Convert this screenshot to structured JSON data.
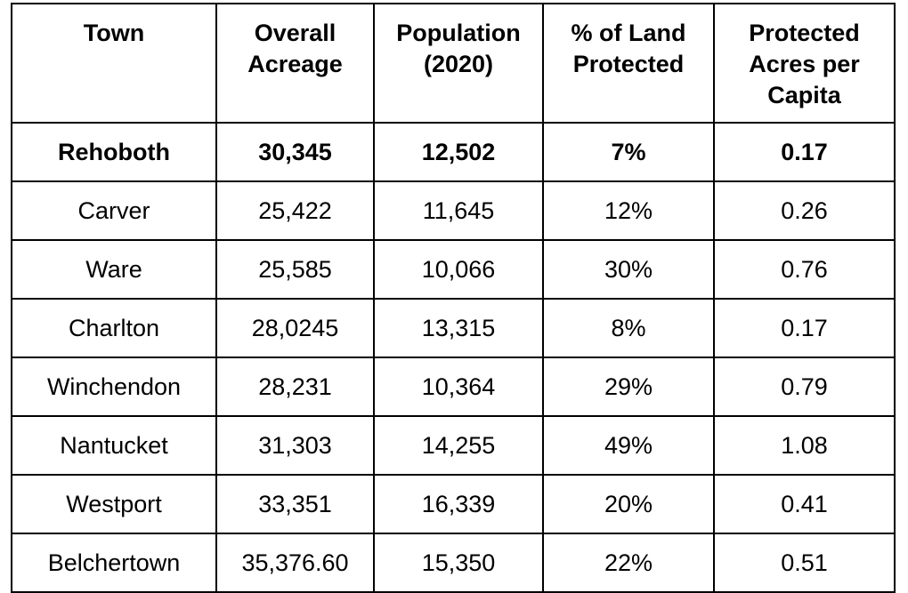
{
  "table": {
    "headers": [
      "Town",
      "Overall\nAcreage",
      "Population\n(2020)",
      "% of Land\nProtected",
      "Protected\nAcres per\nCapita"
    ],
    "rows": [
      [
        "Rehoboth",
        "30,345",
        "12,502",
        "7%",
        "0.17"
      ],
      [
        "Carver",
        "25,422",
        "11,645",
        "12%",
        "0.26"
      ],
      [
        "Ware",
        "25,585",
        "10,066",
        "30%",
        "0.76"
      ],
      [
        "Charlton",
        "28,0245",
        "13,315",
        "8%",
        "0.17"
      ],
      [
        "Winchendon",
        "28,231",
        "10,364",
        "29%",
        "0.79"
      ],
      [
        "Nantucket",
        "31,303",
        "14,255",
        "49%",
        "1.08"
      ],
      [
        "Westport",
        "33,351",
        "16,339",
        "20%",
        "0.41"
      ],
      [
        "Belchertown",
        "35,376.60",
        "15,350",
        "22%",
        "0.51"
      ]
    ],
    "highlighted_row": 0
  }
}
